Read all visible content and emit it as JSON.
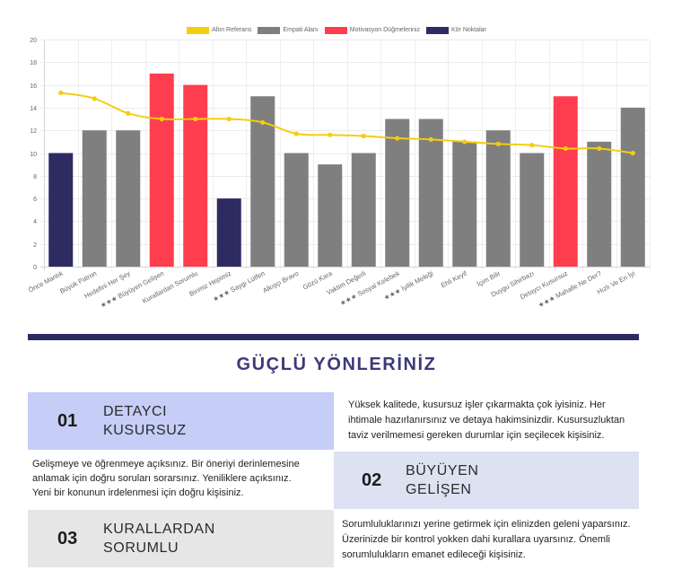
{
  "chart_data": {
    "type": "bar",
    "categories": [
      "Önce Mantık",
      "Büyük Patron",
      "Hedefini Her Şey",
      "★★★ Büyüyen Gelişen",
      "Kurallardan Sorumlu",
      "Birimiz Hepimiz",
      "★★★ Saygı Lütfen",
      "Alkışçı Bravo",
      "Gözü Kara",
      "Vaktim Değerli",
      "★★★ Sosyal Kelebek",
      "★★★ İyilik Meleği",
      "Ehli Keyif",
      "İçim Bilir",
      "Duygu Sihirbazı",
      "Detaycı Kusursuz",
      "★★★ Mahalle Ne Der?",
      "Hızlı Ve En İyi"
    ],
    "series": [
      {
        "name": "Altın Referans",
        "type": "line",
        "color": "#f5cd0f",
        "values": [
          15.3,
          14.8,
          13.5,
          13.0,
          13.0,
          13.0,
          12.7,
          11.7,
          11.6,
          11.5,
          11.3,
          11.2,
          11.0,
          10.8,
          10.7,
          10.4,
          10.4,
          10.0
        ]
      },
      {
        "name": "Empati Alanı",
        "type": "bar",
        "color": "#7f7f7f",
        "values": [
          null,
          12,
          12,
          null,
          null,
          null,
          15,
          10,
          9,
          10,
          13,
          13,
          11,
          12,
          10,
          null,
          11,
          14
        ]
      },
      {
        "name": "Motivasyon Düğmeleriniz",
        "type": "bar",
        "color": "#fe3d4f",
        "values": [
          null,
          null,
          null,
          17,
          16,
          null,
          null,
          null,
          null,
          null,
          null,
          null,
          null,
          null,
          null,
          15,
          null,
          null
        ]
      },
      {
        "name": "Kör Noktalar",
        "type": "bar",
        "color": "#2e2a62",
        "values": [
          10,
          null,
          null,
          null,
          null,
          6,
          null,
          null,
          null,
          null,
          null,
          null,
          null,
          null,
          null,
          null,
          null,
          null
        ]
      }
    ],
    "ylim": [
      0,
      20
    ],
    "yticks": [
      0,
      2,
      4,
      6,
      8,
      10,
      12,
      14,
      16,
      18,
      20
    ],
    "grid": true,
    "legend_position": "top"
  },
  "section": {
    "title": "GÜÇLÜ YÖNLERİNİZ",
    "strengths": [
      {
        "number": "01",
        "title_lines": [
          "DETAYCI",
          "KUSURSUZ"
        ],
        "description": "Yüksek kalitede, kusursuz işler çıkarmakta çok iyisiniz. Her ihtimale hazırlanırsınız ve detaya hakimsinizdir. Kusursuzluktan taviz verilmemesi gereken durumlar için seçilecek kişisiniz."
      },
      {
        "number": "02",
        "title_lines": [
          "BÜYÜYEN",
          "GELİŞEN"
        ],
        "description": "Gelişmeye ve öğrenmeye açıksınız. Bir öneriyi derinlemesine anlamak için doğru soruları sorarsınız. Yeniliklere açıksınız. Yeni bir konunun irdelenmesi için doğru kişisiniz."
      },
      {
        "number": "03",
        "title_lines": [
          "KURALLARDAN",
          "SORUMLU"
        ],
        "description": "Sorumluluklarınızı yerine getirmek için elinizden geleni yaparsınız. Üzerinizde bir kontrol yokken dahi kurallara uyarsınız. Önemli sorumlulukların emanet edileceği kişisiniz."
      }
    ]
  },
  "colors": {
    "divider": "#2e2a62",
    "title": "#3d3978",
    "card_1": "#c6cdf6",
    "card_2": "#dce2f2",
    "card_3": "#e6e6e7"
  }
}
